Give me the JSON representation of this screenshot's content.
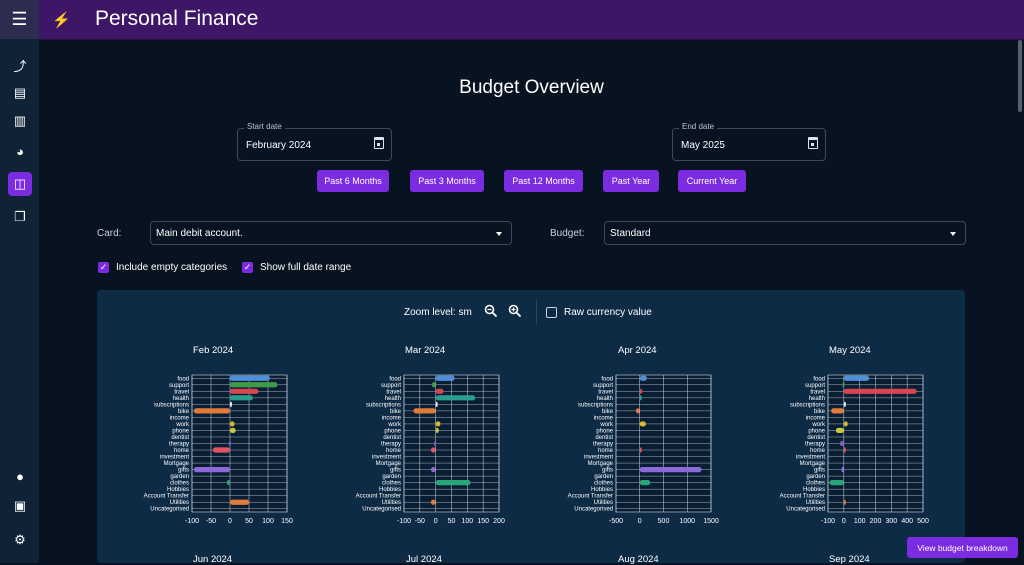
{
  "app": {
    "title": "Personal Finance"
  },
  "page": {
    "heading": "Budget Overview"
  },
  "dates": {
    "start": {
      "label": "Start date",
      "value": "February 2024"
    },
    "end": {
      "label": "End date",
      "value": "May 2025"
    }
  },
  "presets": [
    "Past 6 Months",
    "Past 3 Months",
    "Past 12 Months",
    "Past Year",
    "Current Year"
  ],
  "filters": {
    "card": {
      "label": "Card:",
      "value": "Main debit account."
    },
    "budget": {
      "label": "Budget:",
      "value": "Standard"
    },
    "include_empty": {
      "label": "Include empty categories",
      "checked": true
    },
    "full_range": {
      "label": "Show full date range",
      "checked": true
    }
  },
  "panel": {
    "zoom_label": "Zoom level: sm",
    "raw_currency_label": "Raw currency value",
    "raw_checked": false
  },
  "breakdown_button": "View budget breakdown",
  "lower_month_labels": [
    "Jun 2024",
    "Jul 2024",
    "Aug 2024",
    "Sep 2024"
  ],
  "colors": {
    "accent": "#7b2be0",
    "topbar": "#3d1668",
    "background": "#081322",
    "panel": "#0e2b46"
  },
  "sidebar_icons": [
    "line-chart-icon",
    "list-icon",
    "bar-chart-icon",
    "pie-chart-icon",
    "compare-icon",
    "copy-icon",
    "person-icon",
    "money-icon",
    "settings-icon"
  ],
  "chart_data": [
    {
      "type": "bar",
      "title": "Feb 2024",
      "categories": [
        "food",
        "support",
        "travel",
        "health",
        "subscriptions",
        "bike",
        "income",
        "work",
        "phone",
        "dentist",
        "therapy",
        "home",
        "investment",
        "Mortgage",
        "gifts",
        "garden",
        "clothes",
        "Hobbies",
        "Account Transfer",
        "Utilities",
        "Uncategorised"
      ],
      "values": [
        105,
        125,
        75,
        60,
        5,
        -95,
        0,
        12,
        15,
        0,
        -3,
        -45,
        0,
        0,
        -95,
        0,
        -8,
        0,
        0,
        50,
        0
      ],
      "xticks": [
        -100,
        -50,
        0,
        50,
        100,
        150
      ],
      "xlim": [
        -100,
        150
      ]
    },
    {
      "type": "bar",
      "title": "Mar 2024",
      "categories": [
        "food",
        "support",
        "travel",
        "health",
        "subscriptions",
        "bike",
        "income",
        "work",
        "phone",
        "dentist",
        "therapy",
        "home",
        "investment",
        "Mortgage",
        "gifts",
        "garden",
        "clothes",
        "Hobbies",
        "Account Transfer",
        "Utilities",
        "Uncategorised"
      ],
      "values": [
        60,
        -12,
        25,
        125,
        3,
        -70,
        0,
        15,
        10,
        0,
        -5,
        -15,
        0,
        0,
        -15,
        0,
        110,
        0,
        0,
        -15,
        0
      ],
      "xticks": [
        -100,
        -50,
        0,
        50,
        100,
        150,
        200
      ],
      "xlim": [
        -100,
        200
      ]
    },
    {
      "type": "bar",
      "title": "Apr 2024",
      "categories": [
        "food",
        "support",
        "travel",
        "health",
        "subscriptions",
        "bike",
        "income",
        "work",
        "phone",
        "dentist",
        "therapy",
        "home",
        "investment",
        "Mortgage",
        "gifts",
        "garden",
        "clothes",
        "Hobbies",
        "Account Transfer",
        "Utilities",
        "Uncategorised"
      ],
      "values": [
        150,
        0,
        50,
        15,
        0,
        -80,
        0,
        130,
        0,
        0,
        0,
        15,
        0,
        0,
        1300,
        0,
        220,
        0,
        0,
        0,
        0
      ],
      "xticks": [
        -500,
        0,
        500,
        1000,
        1500
      ],
      "xlim": [
        -500,
        1500
      ]
    },
    {
      "type": "bar",
      "title": "May 2024",
      "categories": [
        "food",
        "support",
        "travel",
        "health",
        "subscriptions",
        "bike",
        "income",
        "work",
        "phone",
        "dentist",
        "therapy",
        "home",
        "investment",
        "Mortgage",
        "gifts",
        "garden",
        "clothes",
        "Hobbies",
        "Account Transfer",
        "Utilities",
        "Uncategorised"
      ],
      "values": [
        160,
        -8,
        460,
        0,
        3,
        -80,
        0,
        25,
        -50,
        0,
        -25,
        5,
        0,
        0,
        -15,
        0,
        -90,
        0,
        0,
        5,
        0
      ],
      "xticks": [
        -100,
        0,
        100,
        200,
        300,
        400,
        500
      ],
      "xlim": [
        -100,
        500
      ]
    }
  ]
}
